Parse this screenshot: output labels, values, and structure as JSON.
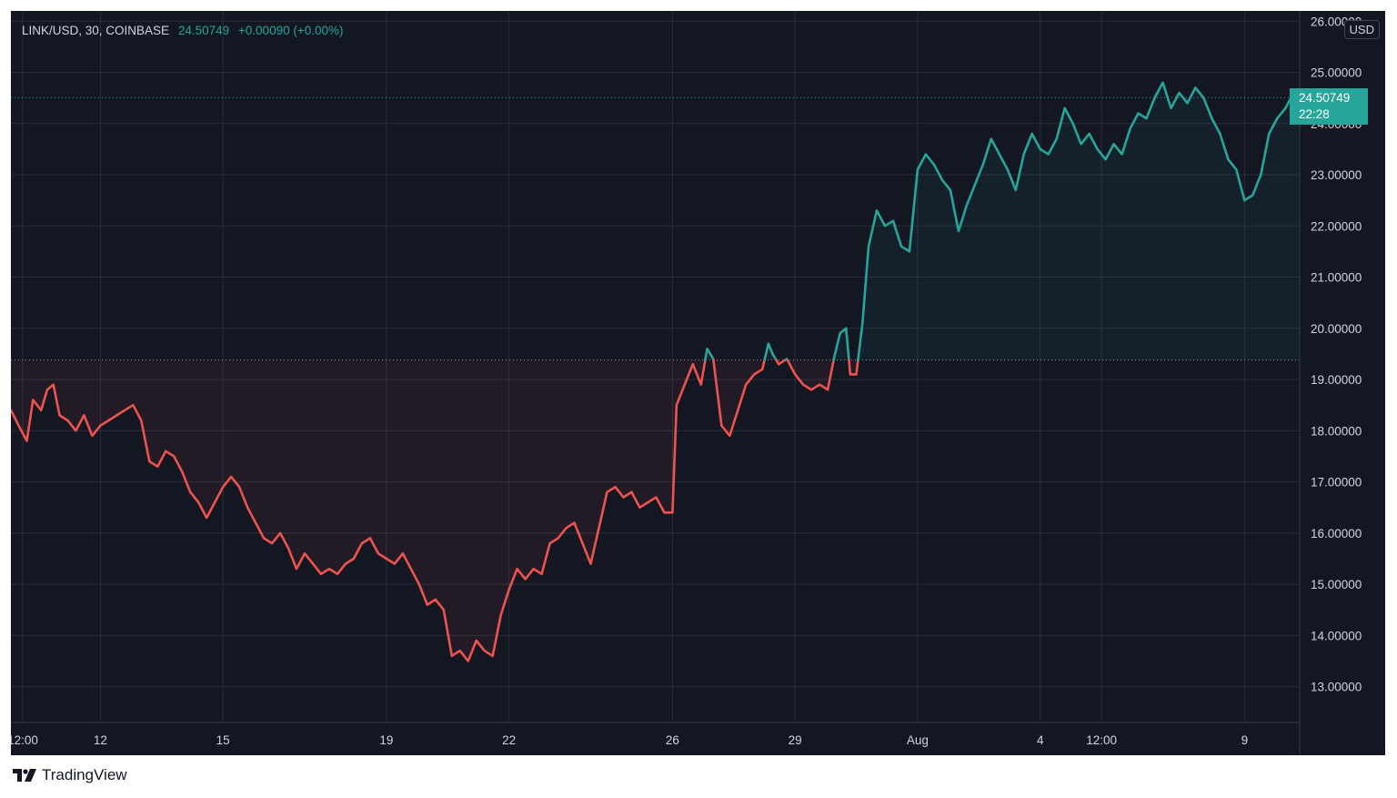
{
  "header": {
    "symbol": "LINK/USD, 30, COINBASE",
    "last_value": "24.50749",
    "change": "+0.00090 (+0.00%)"
  },
  "currency_badge": "USD",
  "last_price_label": {
    "price": "24.50749",
    "countdown": "22:28"
  },
  "watermark": {
    "brand": "TradingView",
    "logo_icon": "tradingview-logo-icon"
  },
  "colors": {
    "background": "#131722",
    "up": "#26a69a",
    "down": "#ef5350",
    "grid": "#2a2e39",
    "text": "#d1d4dc"
  },
  "chart_data": {
    "type": "line",
    "title": "",
    "xlabel": "",
    "ylabel": "",
    "ylim": [
      12.3,
      26.2
    ],
    "baseline": 19.38,
    "last_price": 24.50749,
    "y_ticks": [
      13.0,
      14.0,
      15.0,
      16.0,
      17.0,
      18.0,
      19.0,
      20.0,
      21.0,
      22.0,
      23.0,
      24.0,
      25.0,
      26.0
    ],
    "y_tick_labels": [
      "13.00000",
      "14.00000",
      "15.00000",
      "16.00000",
      "17.00000",
      "18.00000",
      "19.00000",
      "20.00000",
      "21.00000",
      "22.00000",
      "23.00000",
      "24.00000",
      "25.00000",
      "26.00000"
    ],
    "x_ticks": [
      {
        "label": "12:00",
        "t": 0.6
      },
      {
        "label": "12",
        "t": 2.5
      },
      {
        "label": "15",
        "t": 5.5
      },
      {
        "label": "19",
        "t": 9.5
      },
      {
        "label": "22",
        "t": 12.5
      },
      {
        "label": "26",
        "t": 16.5
      },
      {
        "label": "29",
        "t": 19.5
      },
      {
        "label": "Aug",
        "t": 22.5
      },
      {
        "label": "4",
        "t": 25.5
      },
      {
        "label": "12:00",
        "t": 27.0
      },
      {
        "label": "9",
        "t": 30.5
      }
    ],
    "x_domain": [
      0.31,
      31.85
    ],
    "series": [
      {
        "points": [
          [
            0.31,
            18.4
          ],
          [
            0.5,
            18.1
          ],
          [
            0.7,
            17.8
          ],
          [
            0.85,
            18.6
          ],
          [
            1.05,
            18.4
          ],
          [
            1.2,
            18.8
          ],
          [
            1.35,
            18.9
          ],
          [
            1.5,
            18.3
          ],
          [
            1.7,
            18.2
          ],
          [
            1.9,
            18.0
          ],
          [
            2.1,
            18.3
          ],
          [
            2.3,
            17.9
          ],
          [
            2.5,
            18.1
          ],
          [
            2.7,
            18.2
          ],
          [
            2.9,
            18.3
          ],
          [
            3.1,
            18.4
          ],
          [
            3.3,
            18.5
          ],
          [
            3.5,
            18.2
          ],
          [
            3.7,
            17.4
          ],
          [
            3.9,
            17.3
          ],
          [
            4.1,
            17.6
          ],
          [
            4.3,
            17.5
          ],
          [
            4.5,
            17.2
          ],
          [
            4.7,
            16.8
          ],
          [
            4.9,
            16.6
          ],
          [
            5.1,
            16.3
          ],
          [
            5.3,
            16.6
          ],
          [
            5.5,
            16.9
          ],
          [
            5.7,
            17.1
          ],
          [
            5.9,
            16.9
          ],
          [
            6.1,
            16.5
          ],
          [
            6.3,
            16.2
          ],
          [
            6.5,
            15.9
          ],
          [
            6.7,
            15.8
          ],
          [
            6.9,
            16.0
          ],
          [
            7.1,
            15.7
          ],
          [
            7.3,
            15.3
          ],
          [
            7.5,
            15.6
          ],
          [
            7.7,
            15.4
          ],
          [
            7.9,
            15.2
          ],
          [
            8.1,
            15.3
          ],
          [
            8.3,
            15.2
          ],
          [
            8.5,
            15.4
          ],
          [
            8.7,
            15.5
          ],
          [
            8.9,
            15.8
          ],
          [
            9.1,
            15.9
          ],
          [
            9.3,
            15.6
          ],
          [
            9.5,
            15.5
          ],
          [
            9.7,
            15.4
          ],
          [
            9.9,
            15.6
          ],
          [
            10.1,
            15.3
          ],
          [
            10.3,
            15.0
          ],
          [
            10.5,
            14.6
          ],
          [
            10.7,
            14.7
          ],
          [
            10.9,
            14.5
          ],
          [
            11.1,
            13.6
          ],
          [
            11.3,
            13.7
          ],
          [
            11.5,
            13.5
          ],
          [
            11.7,
            13.9
          ],
          [
            11.9,
            13.7
          ],
          [
            12.1,
            13.6
          ],
          [
            12.3,
            14.4
          ],
          [
            12.5,
            14.9
          ],
          [
            12.7,
            15.3
          ],
          [
            12.9,
            15.1
          ],
          [
            13.1,
            15.3
          ],
          [
            13.3,
            15.2
          ],
          [
            13.5,
            15.8
          ],
          [
            13.7,
            15.9
          ],
          [
            13.9,
            16.1
          ],
          [
            14.1,
            16.2
          ],
          [
            14.3,
            15.8
          ],
          [
            14.5,
            15.4
          ],
          [
            14.7,
            16.1
          ],
          [
            14.9,
            16.8
          ],
          [
            15.1,
            16.9
          ],
          [
            15.3,
            16.7
          ],
          [
            15.5,
            16.8
          ],
          [
            15.7,
            16.5
          ],
          [
            15.9,
            16.6
          ],
          [
            16.1,
            16.7
          ],
          [
            16.3,
            16.4
          ],
          [
            16.5,
            16.4
          ],
          [
            16.6,
            18.5
          ],
          [
            16.8,
            18.9
          ],
          [
            17.0,
            19.3
          ],
          [
            17.2,
            18.9
          ],
          [
            17.35,
            19.6
          ],
          [
            17.5,
            19.4
          ],
          [
            17.7,
            18.1
          ],
          [
            17.9,
            17.9
          ],
          [
            18.1,
            18.4
          ],
          [
            18.3,
            18.9
          ],
          [
            18.5,
            19.1
          ],
          [
            18.7,
            19.2
          ],
          [
            18.85,
            19.7
          ],
          [
            18.95,
            19.5
          ],
          [
            19.1,
            19.3
          ],
          [
            19.3,
            19.4
          ],
          [
            19.5,
            19.1
          ],
          [
            19.7,
            18.9
          ],
          [
            19.9,
            18.8
          ],
          [
            20.1,
            18.9
          ],
          [
            20.3,
            18.8
          ],
          [
            20.45,
            19.4
          ],
          [
            20.6,
            19.9
          ],
          [
            20.75,
            20.0
          ],
          [
            20.85,
            19.1
          ],
          [
            21.0,
            19.1
          ],
          [
            21.15,
            20.1
          ],
          [
            21.3,
            21.6
          ],
          [
            21.5,
            22.3
          ],
          [
            21.7,
            22.0
          ],
          [
            21.9,
            22.1
          ],
          [
            22.1,
            21.6
          ],
          [
            22.3,
            21.5
          ],
          [
            22.5,
            23.1
          ],
          [
            22.7,
            23.4
          ],
          [
            22.9,
            23.2
          ],
          [
            23.1,
            22.9
          ],
          [
            23.3,
            22.7
          ],
          [
            23.5,
            21.9
          ],
          [
            23.7,
            22.4
          ],
          [
            23.9,
            22.8
          ],
          [
            24.1,
            23.2
          ],
          [
            24.3,
            23.7
          ],
          [
            24.5,
            23.4
          ],
          [
            24.7,
            23.1
          ],
          [
            24.9,
            22.7
          ],
          [
            25.1,
            23.4
          ],
          [
            25.3,
            23.8
          ],
          [
            25.5,
            23.5
          ],
          [
            25.7,
            23.4
          ],
          [
            25.9,
            23.7
          ],
          [
            26.1,
            24.3
          ],
          [
            26.3,
            24.0
          ],
          [
            26.5,
            23.6
          ],
          [
            26.7,
            23.8
          ],
          [
            26.9,
            23.5
          ],
          [
            27.1,
            23.3
          ],
          [
            27.3,
            23.6
          ],
          [
            27.5,
            23.4
          ],
          [
            27.7,
            23.9
          ],
          [
            27.9,
            24.2
          ],
          [
            28.1,
            24.1
          ],
          [
            28.3,
            24.5
          ],
          [
            28.5,
            24.8
          ],
          [
            28.7,
            24.3
          ],
          [
            28.9,
            24.6
          ],
          [
            29.1,
            24.4
          ],
          [
            29.3,
            24.7
          ],
          [
            29.5,
            24.5
          ],
          [
            29.7,
            24.1
          ],
          [
            29.9,
            23.8
          ],
          [
            30.1,
            23.3
          ],
          [
            30.3,
            23.1
          ],
          [
            30.5,
            22.5
          ],
          [
            30.7,
            22.6
          ],
          [
            30.9,
            23.0
          ],
          [
            31.1,
            23.8
          ],
          [
            31.3,
            24.1
          ],
          [
            31.5,
            24.3
          ],
          [
            31.7,
            24.6
          ],
          [
            31.85,
            24.51
          ]
        ]
      }
    ]
  }
}
